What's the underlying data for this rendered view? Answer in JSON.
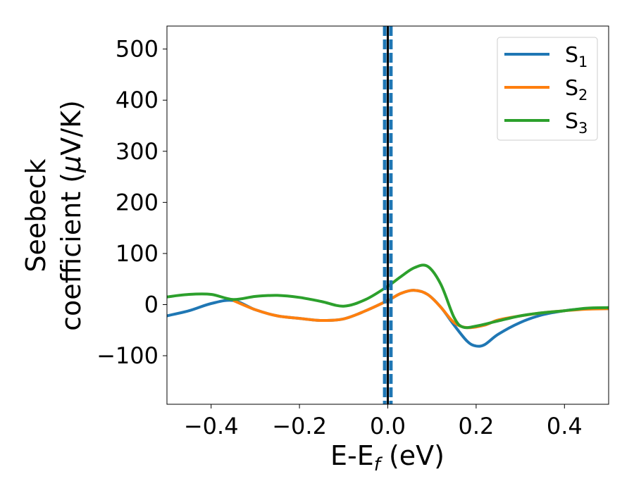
{
  "chart_data": {
    "type": "line",
    "xlabel": "E-E",
    "xlabel_sub": "f",
    "xlabel_unit": " (eV)",
    "ylabel_line1": "Seebeck",
    "ylabel_line2_prefix": "coefficient  (",
    "ylabel_mu": "μ",
    "ylabel_line2_suffix": "V/K)",
    "xlim": [
      -0.5,
      0.5
    ],
    "ylim": [
      -195,
      545
    ],
    "xticks": [
      -0.4,
      -0.2,
      0.0,
      0.2,
      0.4
    ],
    "xtick_labels": [
      "−0.4",
      "−0.2",
      "0.0",
      "0.2",
      "0.4"
    ],
    "yticks": [
      -100,
      0,
      100,
      200,
      300,
      400,
      500
    ],
    "ytick_labels": [
      "−100",
      "0",
      "100",
      "200",
      "300",
      "400",
      "500"
    ],
    "grid": false,
    "legend_position": "top-right",
    "vlines": [
      {
        "x": 0.0,
        "style": "solid",
        "color": "#000000"
      },
      {
        "x": -0.007,
        "style": "dashed",
        "color": "#1f77b4"
      },
      {
        "x": 0.007,
        "style": "dashed",
        "color": "#1f77b4"
      }
    ],
    "series": [
      {
        "name": "S",
        "sub": "1",
        "color": "#1f77b4",
        "x": [
          -0.5,
          -0.45,
          -0.4,
          -0.35,
          -0.3,
          -0.25,
          -0.2,
          -0.15,
          -0.1,
          -0.05,
          0.0,
          0.03,
          0.06,
          0.09,
          0.12,
          0.15,
          0.18,
          0.2,
          0.22,
          0.25,
          0.3,
          0.35,
          0.4,
          0.45,
          0.5
        ],
        "y": [
          -22,
          -12,
          2,
          8,
          -10,
          -22,
          -27,
          -31,
          -28,
          -12,
          8,
          22,
          28,
          20,
          -5,
          -40,
          -72,
          -81,
          -78,
          -58,
          -35,
          -20,
          -12,
          -8,
          -8
        ]
      },
      {
        "name": "S",
        "sub": "2",
        "color": "#ff7f0e",
        "x": [
          -0.35,
          -0.3,
          -0.25,
          -0.2,
          -0.15,
          -0.1,
          -0.05,
          0.0,
          0.03,
          0.06,
          0.09,
          0.12,
          0.15,
          0.18,
          0.22,
          0.25,
          0.3,
          0.35,
          0.4,
          0.45,
          0.5
        ],
        "y": [
          8,
          -10,
          -22,
          -27,
          -31,
          -28,
          -12,
          8,
          22,
          28,
          20,
          -5,
          -35,
          -45,
          -40,
          -30,
          -22,
          -16,
          -12,
          -9,
          -8
        ]
      },
      {
        "name": "S",
        "sub": "3",
        "color": "#2ca02c",
        "x": [
          -0.5,
          -0.45,
          -0.4,
          -0.35,
          -0.3,
          -0.25,
          -0.2,
          -0.15,
          -0.1,
          -0.05,
          0.0,
          0.03,
          0.06,
          0.09,
          0.12,
          0.15,
          0.17,
          0.2,
          0.25,
          0.3,
          0.35,
          0.4,
          0.45,
          0.5
        ],
        "y": [
          15,
          20,
          20,
          10,
          16,
          18,
          14,
          6,
          -3,
          10,
          36,
          55,
          72,
          75,
          40,
          -25,
          -44,
          -42,
          -32,
          -22,
          -16,
          -12,
          -7,
          -6
        ]
      }
    ]
  }
}
